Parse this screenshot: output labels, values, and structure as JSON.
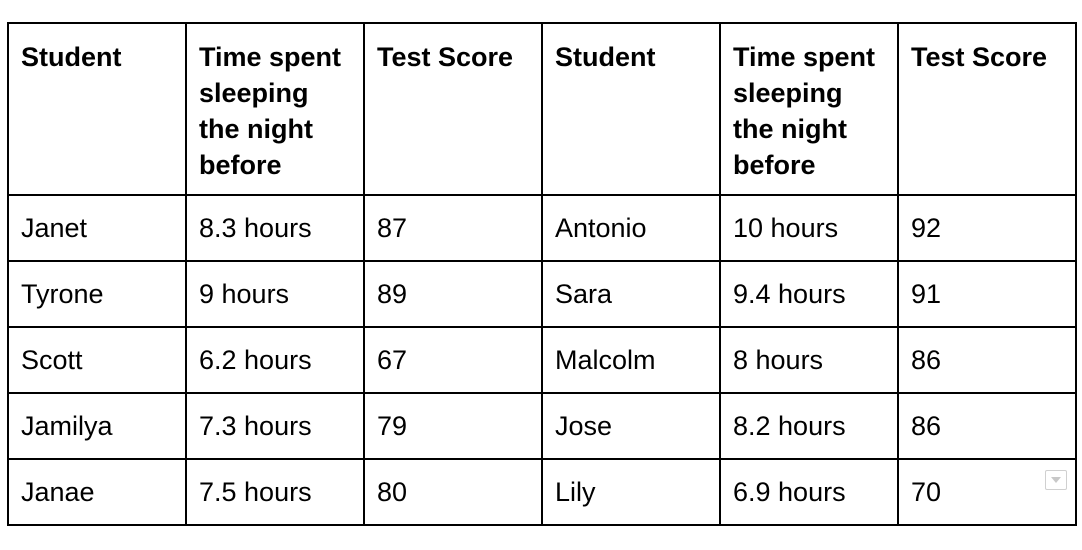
{
  "table": {
    "headers": [
      "Student",
      "Time spent sleeping the night before",
      "Test Score",
      "Student",
      "Time spent sleeping the night before",
      "Test Score"
    ],
    "rows": [
      [
        "Janet",
        "8.3 hours",
        "87",
        "Antonio",
        "10 hours",
        "92"
      ],
      [
        "Tyrone",
        "9 hours",
        "89",
        "Sara",
        "9.4 hours",
        "91"
      ],
      [
        "Scott",
        "6.2 hours",
        "67",
        "Malcolm",
        "8 hours",
        "86"
      ],
      [
        "Jamilya",
        "7.3 hours",
        "79",
        "Jose",
        "8.2 hours",
        "86"
      ],
      [
        "Janae",
        "7.5 hours",
        "80",
        "Lily",
        "6.9 hours",
        "70"
      ]
    ]
  },
  "icons": {
    "corner": "dropdown-arrow-icon"
  }
}
